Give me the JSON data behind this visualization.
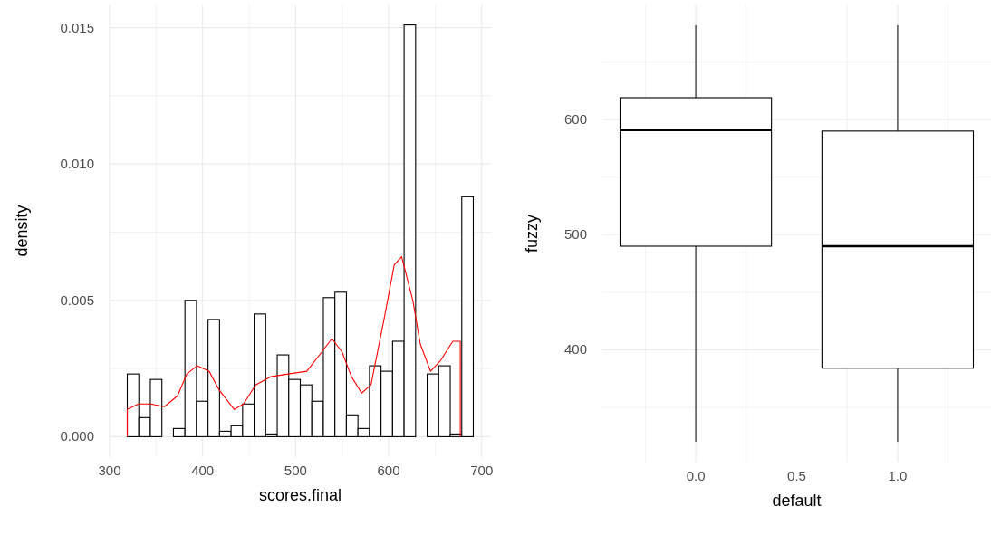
{
  "chart_data": [
    {
      "type": "histogram",
      "xlabel": "scores.final",
      "ylabel": "density",
      "xlim": [
        300,
        710
      ],
      "ylim": [
        -0.00075,
        0.01585
      ],
      "xticks": [
        300,
        {
          "value": 350,
          "label": null
        },
        400,
        {
          "value": 450,
          "label": null
        },
        500,
        {
          "value": 550,
          "label": null
        },
        600,
        {
          "value": 650,
          "label": null
        },
        700
      ],
      "yticks": [
        {
          "value": 0,
          "label": "0.000"
        },
        {
          "value": 0.0025,
          "label": null
        },
        {
          "value": 0.005,
          "label": "0.005"
        },
        {
          "value": 0.0075,
          "label": null
        },
        {
          "value": 0.01,
          "label": "0.010"
        },
        {
          "value": 0.0125,
          "label": null
        },
        {
          "value": 0.015,
          "label": "0.015"
        }
      ],
      "grid": true,
      "bins": [
        319,
        331.4,
        343.8,
        356.2,
        368.6,
        381,
        393.4,
        405.8,
        418.2,
        430.6,
        443,
        455.4,
        467.8,
        480.2,
        492.6,
        505,
        517.4,
        529.8,
        542.2,
        554.6,
        567,
        579.4,
        591.8,
        604.2,
        616.6,
        629,
        641.4,
        653.8,
        666.2,
        678.6,
        691
      ],
      "series": [
        {
          "type": "histogram",
          "color": "#000000",
          "values": [
            0.0023,
            0.0007,
            0.0021,
            0,
            0.0003,
            0.005,
            0.0013,
            0.0043,
            0.0002,
            0.0004,
            0.0012,
            0.0045,
            0.0001,
            0.003,
            0.0021,
            0.0019,
            0.0013,
            0.0051,
            0.0053,
            0.0008,
            0.0003,
            0.0026,
            0.0024,
            0.0035,
            0.0151,
            0,
            0.0023,
            0.0026,
            0.0001,
            0.0088
          ]
        },
        {
          "type": "line",
          "color": "#ff0000",
          "x": [
            319,
            319,
            331,
            344,
            359,
            373,
            383,
            394,
            407,
            418,
            434,
            444,
            457,
            473,
            492,
            512,
            528,
            539,
            550,
            560,
            571,
            581,
            595,
            606,
            614,
            626,
            634,
            645,
            656,
            669,
            677,
            677
          ],
          "values": [
            0,
            0.001,
            0.0012,
            0.0012,
            0.0011,
            0.0015,
            0.0023,
            0.0026,
            0.0024,
            0.0017,
            0.001,
            0.0012,
            0.0019,
            0.0022,
            0.0023,
            0.0024,
            0.0031,
            0.0036,
            0.0031,
            0.0022,
            0.0016,
            0.0019,
            0.0043,
            0.0063,
            0.0066,
            0.005,
            0.0034,
            0.0024,
            0.0028,
            0.0035,
            0.0035,
            0
          ]
        }
      ]
    },
    {
      "type": "box",
      "xlabel": "default",
      "ylabel": "fuzzy",
      "categories": [
        "0.0",
        "1.0"
      ],
      "annotations": [
        "0.5"
      ],
      "ylim": [
        302,
        700
      ],
      "yticks": [
        {
          "value": 350,
          "label": null
        },
        400,
        {
          "value": 450,
          "label": null
        },
        500,
        {
          "value": 550,
          "label": null
        },
        600,
        {
          "value": 650,
          "label": null
        }
      ],
      "grid": true,
      "color": "#000000",
      "boxes": [
        {
          "low": 320,
          "q1": 490,
          "median": 591,
          "q3": 619,
          "high": 682
        },
        {
          "low": 320,
          "q1": 384,
          "median": 490,
          "q3": 590,
          "high": 682
        }
      ]
    }
  ]
}
